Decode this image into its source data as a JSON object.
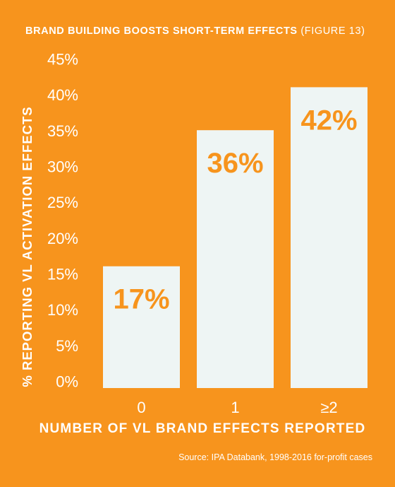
{
  "title": "BRAND BUILDING BOOSTS SHORT-TERM EFFECTS",
  "title_suffix": "(FIGURE 13)",
  "source": "Source: IPA Databank, 1998-2016 for-profit cases",
  "colors": {
    "background": "#F7941D",
    "bar": "#EEF5F4",
    "label": "#F7941D",
    "text": "#FFFFFF"
  },
  "chart_data": {
    "type": "bar",
    "categories": [
      "0",
      "1",
      "≥2"
    ],
    "values": [
      17,
      36,
      42
    ],
    "data_labels": [
      "17%",
      "36%",
      "42%"
    ],
    "xlabel": "NUMBER OF VL BRAND EFFECTS REPORTED",
    "ylabel": "% REPORTING VL ACTIVATION EFFECTS",
    "ylim": [
      0,
      45
    ],
    "yticks": [
      "0%",
      "5%",
      "10%",
      "15%",
      "20%",
      "25%",
      "30%",
      "35%",
      "40%",
      "45%"
    ],
    "grid": false,
    "legend": "none"
  }
}
